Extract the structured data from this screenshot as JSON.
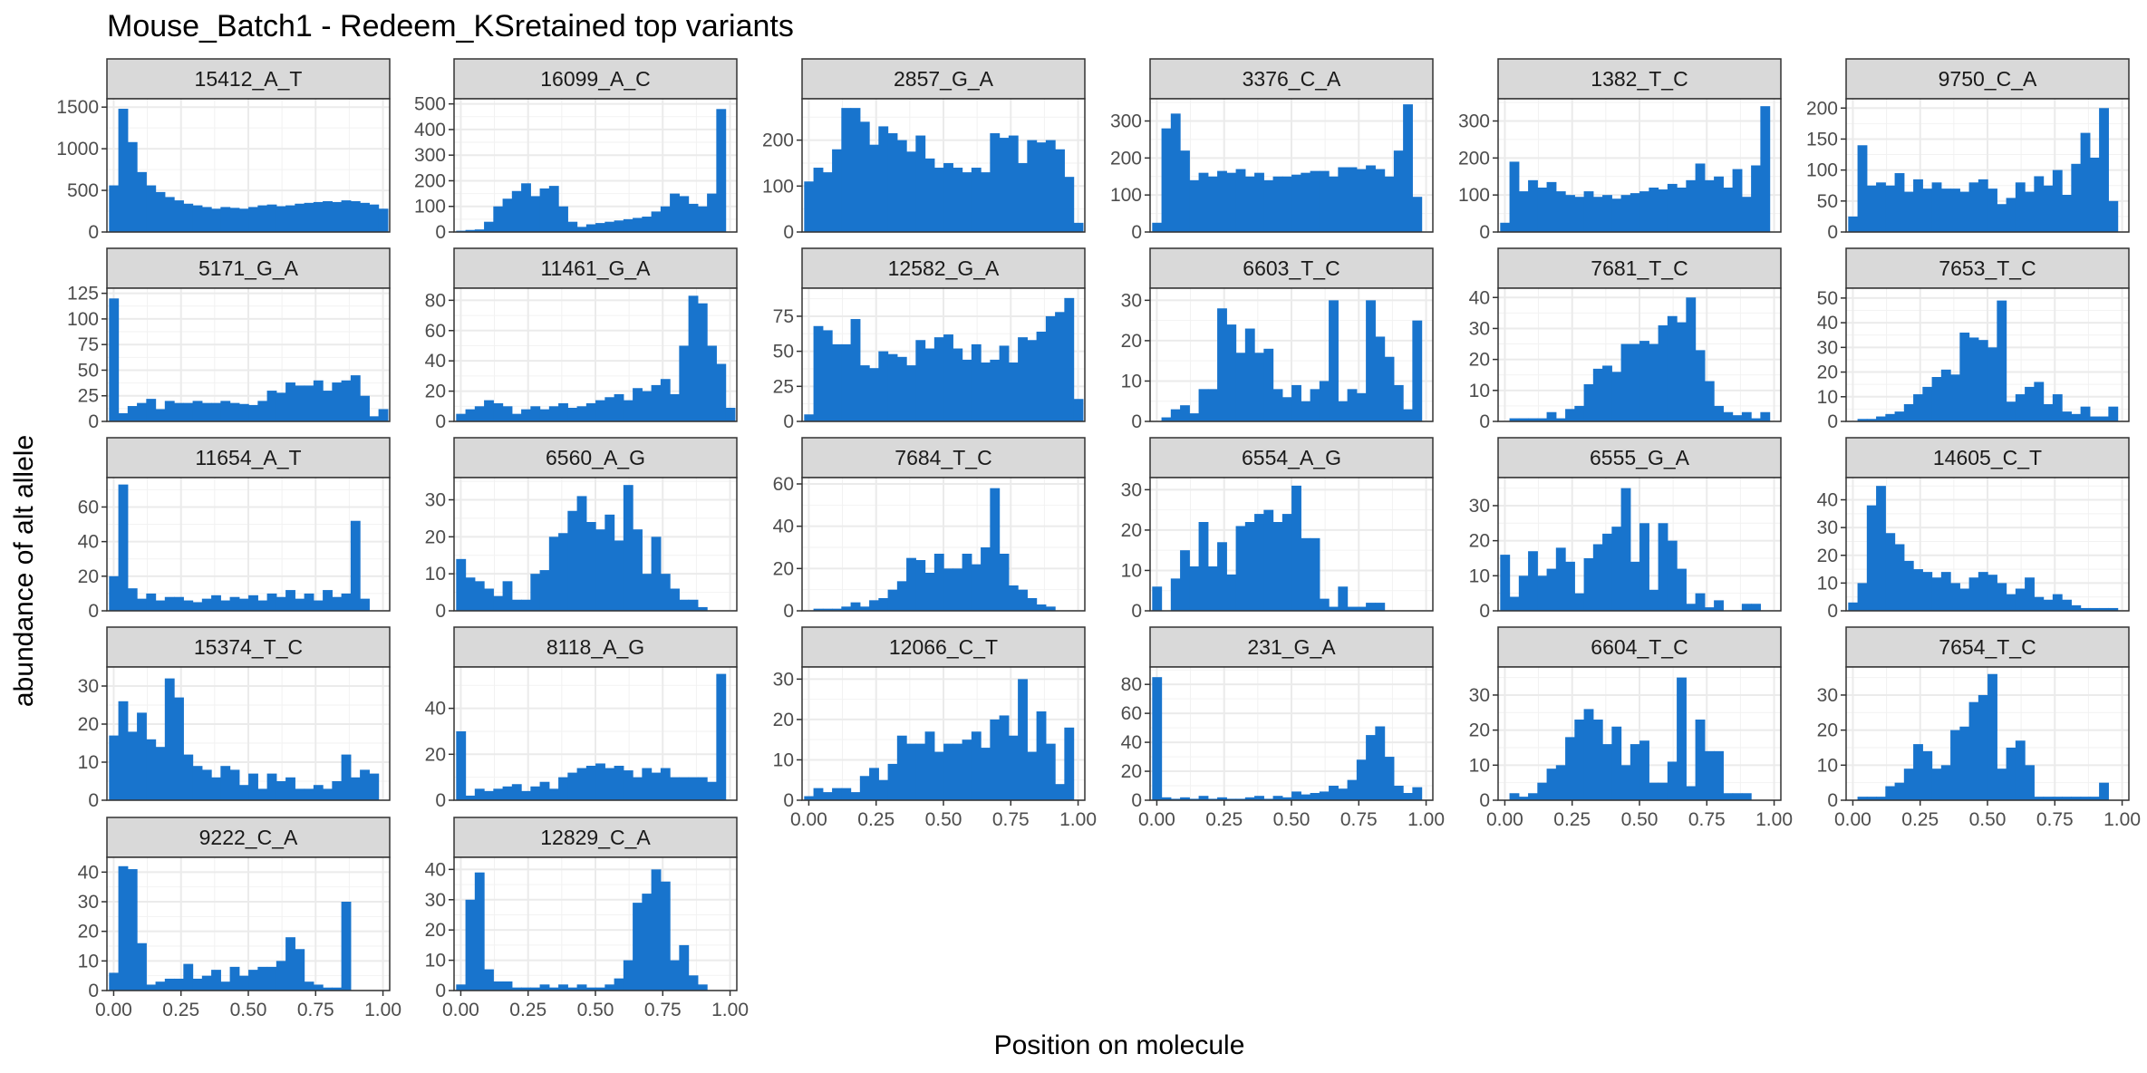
{
  "chart_data": {
    "type": "bar",
    "title": "Mouse_Batch1 - Redeem_KSretained top variants",
    "xlabel": "Position on molecule",
    "ylabel": "abundance of alt allele",
    "xlim": [
      -0.025,
      1.025
    ],
    "xticks": [
      0,
      0.25,
      0.5,
      0.75,
      1
    ],
    "xtick_labels": [
      "0.00",
      "0.25",
      "0.50",
      "0.75",
      "1.00"
    ],
    "bins": 30,
    "bin_start": -0.0172,
    "bin_width": 0.0345,
    "bar_color": "#1874CD",
    "strip_fill": "#D9D9D9",
    "grid": true,
    "panels": [
      {
        "name": "15412_A_T",
        "ylim": [
          0,
          1600
        ],
        "yticks": [
          0,
          500,
          1000,
          1500
        ],
        "values": [
          560,
          1480,
          1080,
          720,
          560,
          480,
          420,
          380,
          340,
          320,
          300,
          280,
          300,
          290,
          280,
          300,
          320,
          330,
          310,
          320,
          340,
          350,
          360,
          370,
          360,
          380,
          370,
          350,
          330,
          280
        ]
      },
      {
        "name": "16099_A_C",
        "ylim": [
          0,
          520
        ],
        "yticks": [
          0,
          100,
          200,
          300,
          400,
          500
        ],
        "values": [
          5,
          8,
          10,
          40,
          100,
          130,
          160,
          190,
          140,
          170,
          180,
          100,
          40,
          20,
          30,
          35,
          40,
          45,
          50,
          55,
          60,
          80,
          100,
          150,
          140,
          110,
          100,
          150,
          480,
          0
        ]
      },
      {
        "name": "2857_G_A",
        "ylim": [
          0,
          290
        ],
        "yticks": [
          0,
          100,
          200
        ],
        "values": [
          110,
          140,
          130,
          180,
          270,
          270,
          240,
          190,
          230,
          215,
          200,
          175,
          210,
          160,
          140,
          150,
          140,
          130,
          140,
          130,
          215,
          205,
          210,
          150,
          200,
          195,
          200,
          180,
          120,
          20
        ]
      },
      {
        "name": "3376_C_A",
        "ylim": [
          0,
          360
        ],
        "yticks": [
          0,
          100,
          200,
          300
        ],
        "values": [
          25,
          280,
          320,
          220,
          140,
          160,
          150,
          165,
          160,
          170,
          150,
          160,
          140,
          150,
          150,
          155,
          160,
          165,
          165,
          150,
          175,
          175,
          170,
          180,
          170,
          150,
          220,
          345,
          95,
          0
        ]
      },
      {
        "name": "1382_T_C",
        "ylim": [
          0,
          360
        ],
        "yticks": [
          0,
          100,
          200,
          300
        ],
        "values": [
          25,
          190,
          110,
          140,
          120,
          135,
          110,
          100,
          95,
          110,
          95,
          100,
          90,
          100,
          105,
          110,
          120,
          115,
          130,
          120,
          140,
          185,
          140,
          150,
          120,
          170,
          95,
          180,
          340,
          0
        ]
      },
      {
        "name": "9750_C_A",
        "ylim": [
          0,
          215
        ],
        "yticks": [
          0,
          50,
          100,
          150,
          200
        ],
        "values": [
          25,
          140,
          75,
          80,
          75,
          95,
          65,
          85,
          70,
          80,
          70,
          70,
          65,
          80,
          85,
          70,
          45,
          55,
          80,
          65,
          90,
          75,
          100,
          60,
          110,
          160,
          120,
          200,
          50,
          0
        ]
      },
      {
        "name": "5171_G_A",
        "ylim": [
          0,
          130
        ],
        "yticks": [
          0,
          25,
          50,
          75,
          100,
          125
        ],
        "values": [
          120,
          8,
          15,
          18,
          22,
          12,
          20,
          18,
          18,
          20,
          18,
          18,
          20,
          18,
          17,
          16,
          20,
          30,
          28,
          38,
          35,
          35,
          40,
          30,
          38,
          40,
          45,
          25,
          5,
          12
        ]
      },
      {
        "name": "11461_G_A",
        "ylim": [
          0,
          88
        ],
        "yticks": [
          0,
          20,
          40,
          60,
          80
        ],
        "values": [
          5,
          8,
          10,
          14,
          12,
          10,
          5,
          8,
          10,
          8,
          10,
          12,
          9,
          10,
          12,
          14,
          16,
          18,
          14,
          22,
          20,
          24,
          28,
          18,
          50,
          83,
          78,
          50,
          38,
          9
        ]
      },
      {
        "name": "12582_G_A",
        "ylim": [
          0,
          95
        ],
        "yticks": [
          0,
          25,
          50,
          75
        ],
        "values": [
          5,
          68,
          65,
          55,
          55,
          73,
          40,
          38,
          50,
          48,
          46,
          40,
          58,
          52,
          60,
          62,
          52,
          44,
          55,
          42,
          44,
          54,
          42,
          60,
          58,
          64,
          75,
          78,
          88,
          16
        ]
      },
      {
        "name": "6603_T_C",
        "ylim": [
          0,
          33
        ],
        "yticks": [
          0,
          10,
          20,
          30
        ],
        "values": [
          0,
          1,
          3,
          4,
          2,
          8,
          8,
          28,
          24,
          17,
          23,
          17,
          18,
          8,
          6,
          9,
          5,
          8,
          10,
          30,
          5,
          8,
          7,
          30,
          21,
          16,
          9,
          3,
          25,
          0
        ]
      },
      {
        "name": "7681_T_C",
        "ylim": [
          0,
          43
        ],
        "yticks": [
          0,
          10,
          20,
          30,
          40
        ],
        "values": [
          0,
          1,
          1,
          1,
          1,
          3,
          1,
          4,
          5,
          12,
          17,
          18,
          16,
          25,
          25,
          26,
          25,
          31,
          34,
          32,
          40,
          23,
          13,
          5,
          3,
          2,
          3,
          1,
          3,
          0
        ]
      },
      {
        "name": "7653_T_C",
        "ylim": [
          0,
          54
        ],
        "yticks": [
          0,
          10,
          20,
          30,
          40,
          50
        ],
        "values": [
          0,
          1,
          1,
          2,
          3,
          4,
          7,
          11,
          14,
          18,
          21,
          19,
          36,
          34,
          33,
          30,
          49,
          8,
          11,
          14,
          16,
          7,
          11,
          4,
          3,
          6,
          2,
          2,
          6,
          0
        ]
      },
      {
        "name": "11654_A_T",
        "ylim": [
          0,
          77
        ],
        "yticks": [
          0,
          20,
          40,
          60
        ],
        "values": [
          20,
          73,
          13,
          7,
          10,
          6,
          8,
          8,
          6,
          5,
          7,
          9,
          6,
          8,
          7,
          9,
          6,
          10,
          8,
          12,
          7,
          10,
          6,
          12,
          8,
          10,
          52,
          7,
          0,
          0
        ]
      },
      {
        "name": "6560_A_G",
        "ylim": [
          0,
          36
        ],
        "yticks": [
          0,
          10,
          20,
          30
        ],
        "values": [
          14,
          9,
          8,
          6,
          4,
          8,
          3,
          3,
          10,
          11,
          20,
          21,
          27,
          31,
          24,
          22,
          26,
          19,
          34,
          22,
          10,
          20,
          10,
          6,
          3,
          3,
          1,
          0,
          0,
          0
        ]
      },
      {
        "name": "7684_T_C",
        "ylim": [
          0,
          63
        ],
        "yticks": [
          0,
          20,
          40,
          60
        ],
        "values": [
          0,
          1,
          1,
          1,
          2,
          4,
          2,
          5,
          6,
          10,
          14,
          25,
          24,
          18,
          27,
          20,
          20,
          27,
          22,
          30,
          58,
          27,
          12,
          10,
          6,
          3,
          2,
          0,
          0,
          0
        ]
      },
      {
        "name": "6554_A_G",
        "ylim": [
          0,
          33
        ],
        "yticks": [
          0,
          10,
          20,
          30
        ],
        "values": [
          6,
          0,
          8,
          15,
          11,
          22,
          11,
          17,
          9,
          21,
          22,
          24,
          25,
          22,
          24,
          31,
          18,
          18,
          3,
          1,
          6,
          1,
          1,
          2,
          2,
          0,
          0,
          0,
          0,
          0
        ]
      },
      {
        "name": "6555_G_A",
        "ylim": [
          0,
          38
        ],
        "yticks": [
          0,
          10,
          20,
          30
        ],
        "values": [
          16,
          4,
          10,
          17,
          10,
          12,
          18,
          14,
          5,
          15,
          19,
          22,
          24,
          35,
          14,
          25,
          6,
          25,
          20,
          12,
          2,
          5,
          1,
          3,
          0,
          0,
          2,
          2,
          0,
          0
        ]
      },
      {
        "name": "14605_C_T",
        "ylim": [
          0,
          48
        ],
        "yticks": [
          0,
          10,
          20,
          30,
          40
        ],
        "values": [
          3,
          10,
          38,
          45,
          28,
          24,
          18,
          15,
          14,
          12,
          14,
          10,
          8,
          12,
          14,
          13,
          10,
          6,
          8,
          12,
          5,
          4,
          6,
          4,
          2,
          1,
          1,
          1,
          1,
          0
        ]
      },
      {
        "name": "15374_T_C",
        "ylim": [
          0,
          35
        ],
        "yticks": [
          0,
          10,
          20,
          30
        ],
        "values": [
          17,
          26,
          18,
          23,
          16,
          14,
          32,
          27,
          12,
          9,
          8,
          6,
          9,
          8,
          4,
          7,
          3,
          7,
          5,
          6,
          3,
          3,
          4,
          3,
          5,
          12,
          6,
          8,
          7,
          0
        ]
      },
      {
        "name": "8118_A_G",
        "ylim": [
          0,
          58
        ],
        "yticks": [
          0,
          20,
          40
        ],
        "values": [
          30,
          2,
          5,
          4,
          5,
          6,
          7,
          4,
          6,
          8,
          5,
          10,
          12,
          14,
          15,
          16,
          14,
          15,
          13,
          10,
          14,
          12,
          14,
          10,
          10,
          10,
          10,
          8,
          55,
          0
        ]
      },
      {
        "name": "12066_C_T",
        "ylim": [
          0,
          33
        ],
        "yticks": [
          0,
          10,
          20,
          30
        ],
        "values": [
          1,
          3,
          2,
          3,
          3,
          2,
          6,
          8,
          5,
          9,
          16,
          14,
          14,
          17,
          12,
          14,
          14,
          15,
          17,
          13,
          20,
          21,
          16,
          30,
          12,
          22,
          14,
          4,
          18,
          0
        ]
      },
      {
        "name": "231_G_A",
        "ylim": [
          0,
          92
        ],
        "yticks": [
          0,
          20,
          40,
          60,
          80
        ],
        "values": [
          85,
          2,
          1,
          2,
          1,
          3,
          1,
          2,
          1,
          1,
          2,
          3,
          1,
          3,
          2,
          6,
          4,
          5,
          6,
          10,
          8,
          14,
          28,
          45,
          51,
          30,
          10,
          5,
          9,
          0
        ]
      },
      {
        "name": "6604_T_C",
        "ylim": [
          0,
          38
        ],
        "yticks": [
          0,
          10,
          20,
          30
        ],
        "values": [
          0,
          2,
          1,
          2,
          5,
          9,
          10,
          18,
          23,
          26,
          23,
          16,
          21,
          10,
          16,
          17,
          5,
          5,
          11,
          35,
          4,
          23,
          14,
          14,
          2,
          2,
          2,
          0,
          0,
          0
        ]
      },
      {
        "name": "7654_T_C",
        "ylim": [
          0,
          38
        ],
        "yticks": [
          0,
          10,
          20,
          30
        ],
        "values": [
          0,
          1,
          1,
          1,
          4,
          5,
          9,
          16,
          14,
          9,
          10,
          20,
          21,
          28,
          30,
          36,
          9,
          15,
          17,
          10,
          1,
          1,
          1,
          1,
          1,
          1,
          1,
          5,
          0,
          0
        ]
      },
      {
        "name": "9222_C_A",
        "ylim": [
          0,
          45
        ],
        "yticks": [
          0,
          10,
          20,
          30,
          40
        ],
        "values": [
          6,
          42,
          41,
          16,
          2,
          3,
          4,
          4,
          9,
          4,
          5,
          7,
          3,
          8,
          5,
          7,
          8,
          8,
          10,
          18,
          14,
          3,
          2,
          1,
          1,
          30,
          0,
          0,
          0,
          0
        ]
      },
      {
        "name": "12829_C_A",
        "ylim": [
          0,
          44
        ],
        "yticks": [
          0,
          10,
          20,
          30,
          40
        ],
        "values": [
          2,
          30,
          39,
          7,
          3,
          3,
          1,
          1,
          1,
          2,
          1,
          2,
          1,
          2,
          1,
          1,
          2,
          4,
          10,
          29,
          32,
          40,
          36,
          10,
          15,
          5,
          2,
          0,
          0,
          0
        ]
      }
    ]
  }
}
